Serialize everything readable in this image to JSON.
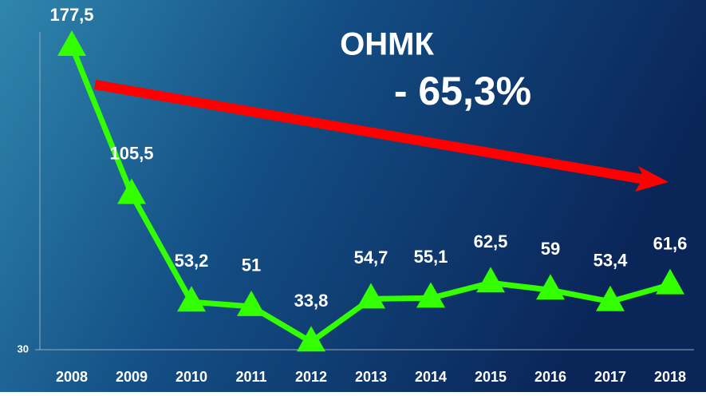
{
  "chart_data": {
    "type": "line",
    "title": "ОНМК",
    "annotations": [
      "- 65,3%"
    ],
    "categories": [
      "2008",
      "2009",
      "2010",
      "2011",
      "2012",
      "2013",
      "2014",
      "2015",
      "2016",
      "2017",
      "2018"
    ],
    "values": [
      177.5,
      105.5,
      53.2,
      51,
      33.8,
      54.7,
      55.1,
      62.5,
      59,
      53.4,
      61.6
    ],
    "value_labels": [
      "177,5",
      "105,5",
      "53,2",
      "51",
      "33,8",
      "54,7",
      "55,1",
      "62,5",
      "59",
      "53,4",
      "61,6"
    ],
    "color": "#33ff00",
    "ylim": [
      30,
      200
    ],
    "yticks": [
      30
    ]
  }
}
